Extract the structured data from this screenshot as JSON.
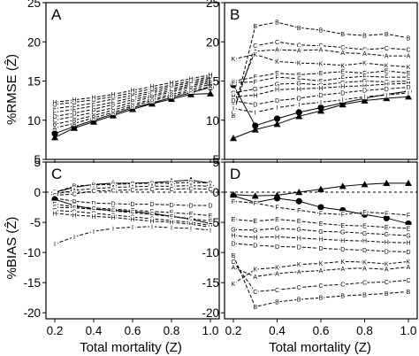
{
  "chart_data": [
    {
      "panel": "A",
      "type": "line",
      "ylabel": "%RMSE (Ẑ)",
      "xlim": [
        0.2,
        1.0
      ],
      "ylim": [
        5,
        25
      ],
      "x": [
        0.2,
        0.3,
        0.4,
        0.5,
        0.6,
        0.7,
        0.8,
        0.9,
        1.0
      ],
      "series": [
        {
          "marker": "triangle",
          "values": [
            7.8,
            9.0,
            9.8,
            10.6,
            11.4,
            12.1,
            12.7,
            13.3,
            13.4
          ]
        },
        {
          "marker": "circle",
          "values": [
            8.3,
            9.2,
            10.0,
            10.8,
            11.6,
            12.2,
            12.9,
            13.5,
            14.2
          ]
        },
        {
          "marker": "A",
          "values": [
            9.0,
            9.6,
            10.3,
            11.0,
            11.8,
            12.5,
            13.1,
            13.7,
            14.3
          ]
        },
        {
          "marker": "B",
          "values": [
            9.5,
            10.0,
            10.6,
            11.3,
            12.0,
            12.7,
            13.3,
            13.9,
            14.6
          ]
        },
        {
          "marker": "C",
          "values": [
            10.0,
            10.5,
            11.0,
            11.6,
            12.3,
            13.0,
            13.6,
            14.2,
            14.8
          ]
        },
        {
          "marker": "D",
          "values": [
            10.5,
            10.9,
            11.4,
            12.0,
            12.6,
            13.2,
            13.8,
            14.4,
            15.0
          ]
        },
        {
          "marker": "E",
          "values": [
            11.0,
            11.4,
            11.8,
            12.3,
            12.9,
            13.5,
            14.0,
            14.6,
            15.2
          ]
        },
        {
          "marker": "F",
          "values": [
            11.5,
            11.8,
            12.2,
            12.7,
            13.2,
            13.7,
            14.3,
            14.8,
            15.4
          ]
        },
        {
          "marker": "G",
          "values": [
            12.0,
            12.3,
            12.6,
            13.0,
            13.5,
            14.0,
            14.5,
            15.0,
            15.6
          ]
        },
        {
          "marker": "H",
          "values": [
            12.3,
            12.6,
            12.9,
            13.3,
            13.8,
            14.3,
            14.8,
            15.3,
            15.8
          ]
        }
      ]
    },
    {
      "panel": "B",
      "type": "line",
      "xlim": [
        0.2,
        1.0
      ],
      "ylim": [
        5,
        25
      ],
      "x": [
        0.2,
        0.3,
        0.4,
        0.5,
        0.6,
        0.7,
        0.8,
        0.9,
        1.0
      ],
      "series": [
        {
          "marker": "triangle",
          "values": [
            7.7,
            8.8,
            9.5,
            10.5,
            11.2,
            12.0,
            12.5,
            12.8,
            13.0
          ]
        },
        {
          "marker": "circle",
          "values": [
            14.5,
            9.3,
            10.2,
            11.0,
            11.6,
            12.2,
            12.8,
            13.3,
            13.7
          ]
        },
        {
          "marker": "B",
          "values": [
            10.6,
            22.0,
            22.5,
            21.8,
            21.5,
            21.0,
            20.8,
            21.0,
            20.5
          ]
        },
        {
          "marker": "C",
          "values": [
            11.0,
            19.5,
            20.0,
            19.6,
            19.5,
            19.3,
            19.0,
            19.2,
            19.0
          ]
        },
        {
          "marker": "A",
          "values": [
            12.0,
            18.8,
            19.0,
            18.9,
            19.0,
            18.6,
            18.5,
            18.2,
            18.2
          ]
        },
        {
          "marker": "K",
          "values": [
            17.8,
            18.4,
            17.5,
            17.3,
            17.2,
            17.0,
            17.3,
            17.0,
            16.8
          ]
        },
        {
          "marker": "E",
          "values": [
            15.0,
            15.5,
            16.0,
            15.8,
            16.0,
            16.2,
            16.0,
            16.3,
            16.0
          ]
        },
        {
          "marker": "F",
          "values": [
            14.8,
            14.9,
            15.5,
            15.3,
            15.0,
            15.4,
            15.6,
            15.5,
            15.5
          ]
        },
        {
          "marker": "G",
          "values": [
            13.5,
            14.0,
            14.6,
            14.7,
            14.5,
            14.8,
            15.0,
            14.9,
            15.0
          ]
        },
        {
          "marker": "H",
          "values": [
            13.0,
            13.2,
            13.9,
            14.0,
            14.1,
            14.3,
            14.4,
            14.6,
            14.7
          ]
        },
        {
          "marker": "D",
          "values": [
            12.5,
            12.0,
            12.5,
            12.8,
            13.2,
            13.5,
            13.8,
            14.0,
            14.2
          ]
        },
        {
          "marker": "I",
          "values": [
            11.5,
            11.0,
            11.6,
            12.0,
            12.3,
            12.6,
            13.0,
            13.2,
            13.5
          ]
        }
      ]
    },
    {
      "panel": "C",
      "type": "line",
      "ylabel": "%BIAS (Ẑ)",
      "xlabel": "Total mortality (Z)",
      "xlim": [
        0.2,
        1.0
      ],
      "ylim": [
        -21,
        5
      ],
      "reference_line": 0,
      "x": [
        0.2,
        0.3,
        0.4,
        0.5,
        0.6,
        0.7,
        0.8,
        0.9,
        1.0
      ],
      "series": [
        {
          "marker": "triangle",
          "values": [
            0.0,
            0.8,
            1.3,
            1.5,
            1.5,
            1.6,
            1.8,
            2.0,
            1.5
          ]
        },
        {
          "marker": "B",
          "values": [
            0.0,
            1.0,
            1.2,
            1.3,
            1.4,
            1.5,
            1.5,
            1.6,
            1.5
          ]
        },
        {
          "marker": "A",
          "values": [
            -0.3,
            0.3,
            0.6,
            0.8,
            0.9,
            1.0,
            1.0,
            1.1,
            1.0
          ]
        },
        {
          "marker": "C",
          "values": [
            -0.5,
            -0.3,
            0.2,
            0.3,
            0.4,
            0.5,
            0.5,
            0.6,
            0.5
          ]
        },
        {
          "marker": "D",
          "values": [
            -1.0,
            -1.5,
            -1.8,
            -1.9,
            -2.0,
            -2.0,
            -2.1,
            -2.2,
            -2.2
          ]
        },
        {
          "marker": "circle",
          "values": [
            -1.2,
            -2.2,
            -2.8,
            -3.0,
            -3.2,
            -3.5,
            -4.0,
            -4.5,
            -5.2
          ]
        },
        {
          "marker": "E",
          "values": [
            -2.0,
            -2.4,
            -2.6,
            -2.8,
            -3.0,
            -3.2,
            -3.4,
            -3.6,
            -3.9
          ]
        },
        {
          "marker": "F",
          "values": [
            -2.5,
            -2.6,
            -2.8,
            -3.1,
            -3.4,
            -3.7,
            -4.0,
            -4.4,
            -4.8
          ]
        },
        {
          "marker": "G",
          "values": [
            -3.0,
            -3.2,
            -3.5,
            -3.8,
            -4.1,
            -4.4,
            -4.7,
            -5.0,
            -5.5
          ]
        },
        {
          "marker": "H",
          "values": [
            -3.5,
            -3.8,
            -4.0,
            -4.2,
            -4.5,
            -4.8,
            -5.0,
            -5.3,
            -5.8
          ]
        },
        {
          "marker": "I",
          "values": [
            -8.6,
            -7.4,
            -6.5,
            -6.0,
            -5.8,
            -5.7,
            -5.9,
            -6.0,
            -6.3
          ]
        }
      ]
    },
    {
      "panel": "D",
      "type": "line",
      "xlabel": "Total mortality (Z)",
      "xlim": [
        0.2,
        1.0
      ],
      "ylim": [
        -21,
        5
      ],
      "reference_line": 0,
      "x": [
        0.2,
        0.3,
        0.4,
        0.5,
        0.6,
        0.7,
        0.8,
        0.9,
        1.0
      ],
      "series": [
        {
          "marker": "triangle",
          "values": [
            -0.4,
            -0.6,
            -0.5,
            0.0,
            0.5,
            1.0,
            1.3,
            1.5,
            1.5
          ]
        },
        {
          "marker": "circle",
          "values": [
            -0.6,
            -1.7,
            -1.0,
            -1.5,
            -2.5,
            -3.0,
            -3.7,
            -4.3,
            -5.2
          ]
        },
        {
          "marker": "F",
          "values": [
            -1.5,
            -1.8,
            -2.5,
            -3.0,
            -3.5,
            -3.7,
            -3.3,
            -3.5,
            -3.8
          ]
        },
        {
          "marker": "E",
          "values": [
            -4.5,
            -4.8,
            -4.5,
            -4.8,
            -5.2,
            -5.5,
            -5.6,
            -5.8,
            -6.0
          ]
        },
        {
          "marker": "G",
          "values": [
            -6.2,
            -6.3,
            -6.0,
            -6.2,
            -6.5,
            -6.6,
            -6.8,
            -7.0,
            -7.2
          ]
        },
        {
          "marker": "H",
          "values": [
            -7.2,
            -7.5,
            -7.4,
            -7.6,
            -7.8,
            -8.0,
            -8.1,
            -8.3,
            -8.4
          ]
        },
        {
          "marker": "D",
          "values": [
            -8.5,
            -8.8,
            -9.0,
            -9.1,
            -9.3,
            -9.5,
            -9.6,
            -9.8,
            -9.9
          ]
        },
        {
          "marker": "K",
          "values": [
            -15.2,
            -12.8,
            -12.5,
            -12.0,
            -11.8,
            -11.5,
            -11.6,
            -11.9,
            -11.5
          ]
        },
        {
          "marker": "A",
          "values": [
            -12.5,
            -14.0,
            -13.5,
            -13.2,
            -13.0,
            -12.7,
            -12.6,
            -12.8,
            -12.4
          ]
        },
        {
          "marker": "C",
          "values": [
            -11.5,
            -16.5,
            -16.2,
            -15.8,
            -15.5,
            -15.3,
            -15.0,
            -14.9,
            -14.6
          ]
        },
        {
          "marker": "B",
          "values": [
            -10.5,
            -19.0,
            -18.2,
            -17.8,
            -17.5,
            -17.2,
            -17.0,
            -16.8,
            -16.5
          ]
        }
      ]
    }
  ],
  "x_ticks": [
    "0.2",
    "0.4",
    "0.6",
    "0.8",
    "1.0"
  ],
  "rmse_ticks": [
    "25",
    "20",
    "15",
    "10",
    "5"
  ],
  "bias_ticks": [
    "5",
    "0",
    "-5",
    "-10",
    "-15",
    "-20"
  ],
  "panel_letters": [
    "A",
    "B",
    "C",
    "D"
  ],
  "ylabel_top": "%RMSE (Ẑ)",
  "ylabel_bottom": "%BIAS (Ẑ)",
  "xlabel": "Total mortality (Z)"
}
